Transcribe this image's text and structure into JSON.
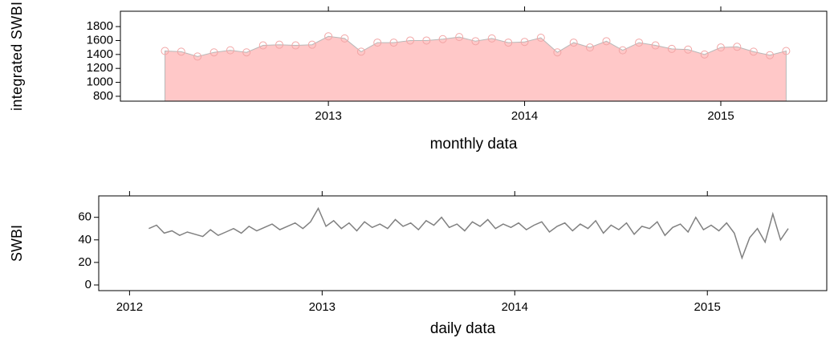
{
  "chart_data": [
    {
      "type": "area",
      "ylabel": "integrated SWBI",
      "xlabel": "monthly data",
      "x": [
        2012.167,
        2012.25,
        2012.333,
        2012.417,
        2012.5,
        2012.583,
        2012.667,
        2012.75,
        2012.833,
        2012.917,
        2013.0,
        2013.083,
        2013.167,
        2013.25,
        2013.333,
        2013.417,
        2013.5,
        2013.583,
        2013.667,
        2013.75,
        2013.833,
        2013.917,
        2014.0,
        2014.083,
        2014.167,
        2014.25,
        2014.333,
        2014.417,
        2014.5,
        2014.583,
        2014.667,
        2014.75,
        2014.833,
        2014.917,
        2015.0,
        2015.083,
        2015.167,
        2015.25,
        2015.333
      ],
      "values": [
        1450,
        1440,
        1370,
        1430,
        1460,
        1430,
        1530,
        1540,
        1530,
        1540,
        1660,
        1630,
        1440,
        1570,
        1570,
        1600,
        1600,
        1620,
        1650,
        1590,
        1630,
        1570,
        1580,
        1640,
        1430,
        1570,
        1500,
        1590,
        1460,
        1570,
        1530,
        1480,
        1470,
        1400,
        1500,
        1510,
        1440,
        1390,
        1450
      ],
      "color": "#ffc8c8",
      "marker_color": "#f2a5a5",
      "xlim": [
        2011.94,
        2015.54
      ],
      "xticks": [
        2013,
        2014,
        2015
      ],
      "ylim": [
        730,
        2020
      ],
      "yticks": [
        800,
        1000,
        1200,
        1400,
        1600,
        1800
      ]
    },
    {
      "type": "line",
      "ylabel": "SWBI",
      "xlabel": "daily data",
      "x": [
        2012.1,
        2012.14,
        2012.18,
        2012.22,
        2012.26,
        2012.3,
        2012.34,
        2012.38,
        2012.42,
        2012.46,
        2012.5,
        2012.54,
        2012.58,
        2012.62,
        2012.66,
        2012.7,
        2012.74,
        2012.78,
        2012.82,
        2012.86,
        2012.9,
        2012.94,
        2012.98,
        2013.02,
        2013.06,
        2013.1,
        2013.14,
        2013.18,
        2013.22,
        2013.26,
        2013.3,
        2013.34,
        2013.38,
        2013.42,
        2013.46,
        2013.5,
        2013.54,
        2013.58,
        2013.62,
        2013.66,
        2013.7,
        2013.74,
        2013.78,
        2013.82,
        2013.86,
        2013.9,
        2013.94,
        2013.98,
        2014.02,
        2014.06,
        2014.1,
        2014.14,
        2014.18,
        2014.22,
        2014.26,
        2014.3,
        2014.34,
        2014.38,
        2014.42,
        2014.46,
        2014.5,
        2014.54,
        2014.58,
        2014.62,
        2014.66,
        2014.7,
        2014.74,
        2014.78,
        2014.82,
        2014.86,
        2014.9,
        2014.94,
        2014.98,
        2015.02,
        2015.06,
        2015.1,
        2015.14,
        2015.18,
        2015.22,
        2015.26,
        2015.3,
        2015.34,
        2015.38,
        2015.42
      ],
      "values": [
        50,
        53,
        46,
        48,
        44,
        47,
        45,
        43,
        49,
        44,
        47,
        50,
        46,
        52,
        48,
        51,
        54,
        49,
        52,
        55,
        50,
        56,
        68,
        52,
        57,
        50,
        55,
        48,
        56,
        51,
        54,
        50,
        58,
        52,
        55,
        49,
        57,
        53,
        60,
        51,
        54,
        48,
        56,
        52,
        58,
        50,
        54,
        51,
        55,
        49,
        53,
        56,
        47,
        52,
        55,
        48,
        54,
        50,
        57,
        46,
        53,
        49,
        55,
        45,
        52,
        50,
        56,
        44,
        51,
        54,
        47,
        60,
        49,
        53,
        48,
        55,
        46,
        24,
        42,
        50,
        38,
        63,
        40,
        50
      ],
      "color": "#808080",
      "xlim": [
        2011.84,
        2015.62
      ],
      "xticks": [
        2012,
        2013,
        2014,
        2015
      ],
      "ylim": [
        -5,
        79
      ],
      "yticks": [
        0,
        20,
        40,
        60
      ]
    }
  ]
}
